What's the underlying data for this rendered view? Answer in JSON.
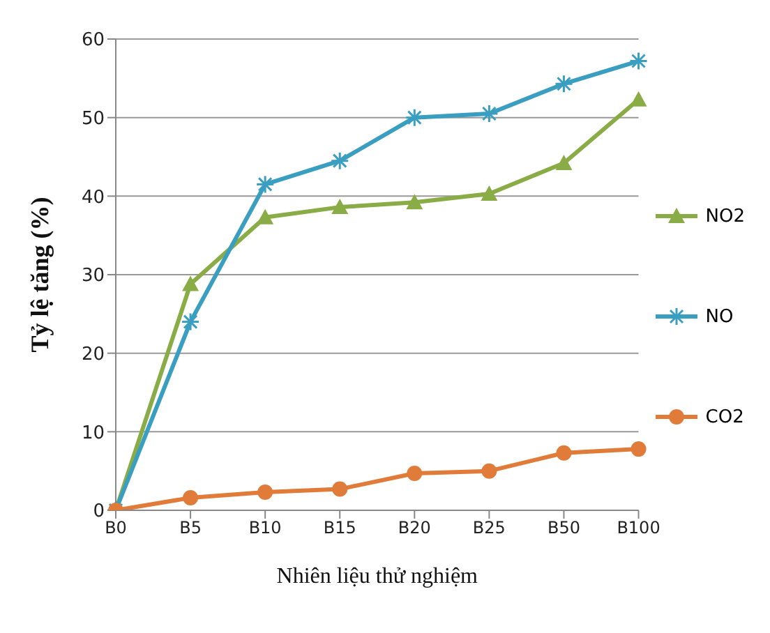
{
  "chart_data": {
    "type": "line",
    "categories": [
      "B0",
      "B5",
      "B10",
      "B15",
      "B20",
      "B25",
      "B50",
      "B100"
    ],
    "xlabel": "Nhiên liệu thử nghiệm",
    "ylabel": "Tỷ lệ tăng (%)",
    "ylim": [
      0,
      60
    ],
    "yticks": [
      0,
      10,
      20,
      30,
      40,
      50,
      60
    ],
    "grid": "y",
    "legend": "right",
    "series": [
      {
        "name": "NO2",
        "color": "#8aac46",
        "marker": "triangle",
        "values": [
          0,
          28.8,
          37.3,
          38.6,
          39.2,
          40.3,
          44.2,
          52.3
        ]
      },
      {
        "name": "NO",
        "color": "#3a9ec0",
        "marker": "cross",
        "values": [
          0,
          24,
          41.5,
          44.5,
          50,
          50.5,
          54.3,
          57.2
        ]
      },
      {
        "name": "CO2",
        "color": "#e07b39",
        "marker": "circle",
        "values": [
          0,
          1.6,
          2.3,
          2.7,
          4.7,
          5.0,
          7.3,
          7.8
        ]
      }
    ]
  }
}
